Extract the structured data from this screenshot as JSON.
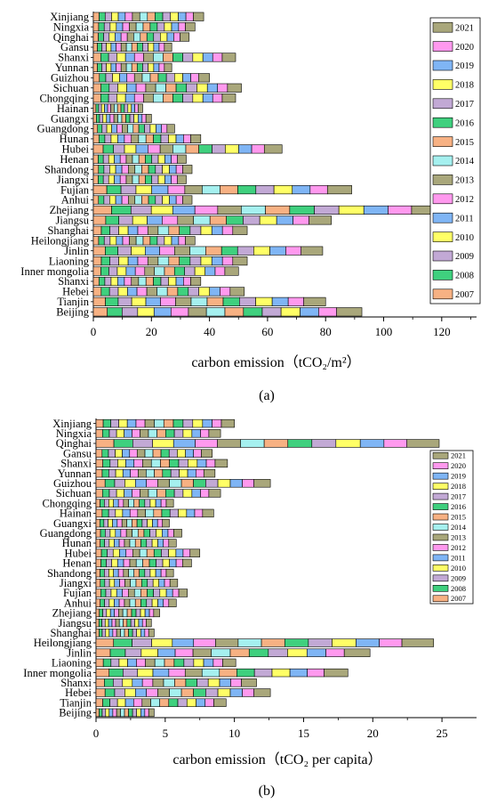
{
  "figure": {
    "panel_a_label": "(a)",
    "panel_b_label": "(b)"
  },
  "legend_years": [
    "2021",
    "2020",
    "2019",
    "2018",
    "2017",
    "2016",
    "2015",
    "2014",
    "2013",
    "2012",
    "2011",
    "2010",
    "2009",
    "2008",
    "2007"
  ],
  "year_colors": {
    "2007": "#f7b183",
    "2008": "#3fd07e",
    "2009": "#c2a9d5",
    "2010": "#ffff66",
    "2011": "#7fb5f5",
    "2012": "#ff99ee",
    "2013": "#a9a77b",
    "2014": "#a5f0ef",
    "2015": "#f7b183",
    "2016": "#3fd07e",
    "2017": "#c2a9d5",
    "2018": "#ffff66",
    "2019": "#7fb5f5",
    "2020": "#ff99ee",
    "2021": "#a9a77b"
  },
  "chart_data": [
    {
      "type": "bar",
      "orientation": "horizontal",
      "stacked": true,
      "xlabel": "carbon emission（tCO₂/m²）",
      "xlim": [
        0,
        132
      ],
      "xticks": [
        0,
        20,
        40,
        60,
        80,
        100,
        120
      ],
      "legend_position": "top-right",
      "grid": false,
      "categories": [
        "Beijing",
        "Tianjin",
        "Hebei",
        "Shanxi",
        "Inner mongolia",
        "Liaoning",
        "Jinlin",
        "Heilongjiang",
        "Shanghai",
        "Jiangsu",
        "Zhejiang",
        "Anhui",
        "Fujian",
        "Jiangxi",
        "Shandong",
        "Henan",
        "Hubei",
        "Hunan",
        "Guangdong",
        "Guangxi",
        "Hainan",
        "Chongqing",
        "Sichuan",
        "Guizhou",
        "Yunnan",
        "Shanxi",
        "Gansu",
        "Qinghai",
        "Ningxia",
        "Xinjiang"
      ],
      "totals": [
        92.5,
        80,
        52,
        37,
        50,
        53,
        79,
        35,
        53,
        82,
        121,
        34,
        89,
        32,
        34,
        32,
        65,
        37,
        28,
        20,
        17,
        49,
        51,
        40,
        27,
        49,
        27,
        33,
        35,
        38
      ],
      "series_order": [
        "2007",
        "2008",
        "2009",
        "2010",
        "2011",
        "2012",
        "2013",
        "2014",
        "2015",
        "2016",
        "2017",
        "2018",
        "2019",
        "2020",
        "2021"
      ],
      "share_profile": [
        0.052,
        0.055,
        0.058,
        0.061,
        0.063,
        0.065,
        0.067,
        0.069,
        0.069,
        0.07,
        0.07,
        0.071,
        0.069,
        0.067,
        0.094
      ]
    },
    {
      "type": "bar",
      "orientation": "horizontal",
      "stacked": true,
      "xlabel": "carbon emission（tCO₂ per capita）",
      "xlim": [
        0,
        27.5
      ],
      "xticks": [
        0,
        5,
        10,
        15,
        20,
        25
      ],
      "legend_position": "right",
      "grid": false,
      "categories": [
        "Beijing",
        "Tianjin",
        "Hebei",
        "Shanxi",
        "Inner mongolia",
        "Liaoning",
        "Jinlin",
        "Heilongjiang",
        "Shanghai",
        "Jiangsu",
        "Zhejiang",
        "Anhui",
        "Fujian",
        "Jiangxi",
        "Shandong",
        "Henan",
        "Hubei",
        "Hunan",
        "Guangdong",
        "Guangxi",
        "Hainan",
        "Chongqing",
        "Sichuan",
        "Guizhou",
        "Yunnan",
        "Shanxi",
        "Gansu",
        "Qinghai",
        "Ningxia",
        "Xinjiang"
      ],
      "totals": [
        4.2,
        9.4,
        12.6,
        11.6,
        18.2,
        10.1,
        19.8,
        24.4,
        4.2,
        4.0,
        4.6,
        5.8,
        6.6,
        5.9,
        5.6,
        6.9,
        7.5,
        5.8,
        6.2,
        5.3,
        8.5,
        5.6,
        9.0,
        12.6,
        8.6,
        9.5,
        8.4,
        24.8,
        9.0,
        10.0
      ],
      "series_order": [
        "2007",
        "2008",
        "2009",
        "2010",
        "2011",
        "2012",
        "2013",
        "2014",
        "2015",
        "2016",
        "2017",
        "2018",
        "2019",
        "2020",
        "2021"
      ],
      "share_profile": [
        0.052,
        0.055,
        0.058,
        0.061,
        0.063,
        0.065,
        0.067,
        0.069,
        0.069,
        0.07,
        0.07,
        0.071,
        0.069,
        0.067,
        0.094
      ]
    }
  ]
}
